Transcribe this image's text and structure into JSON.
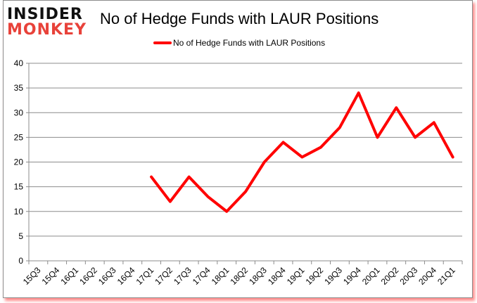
{
  "logo": {
    "line1": "INSIDER",
    "line2": "MONKEY"
  },
  "chart_data": {
    "type": "line",
    "title": "No of Hedge Funds with LAUR Positions",
    "xlabel": "",
    "ylabel": "",
    "ylim": [
      0,
      40
    ],
    "yticks": [
      0,
      5,
      10,
      15,
      20,
      25,
      30,
      35,
      40
    ],
    "grid": true,
    "legend_position": "top",
    "categories": [
      "15Q3",
      "15Q4",
      "16Q1",
      "16Q2",
      "16Q3",
      "16Q4",
      "17Q1",
      "17Q2",
      "17Q3",
      "17Q4",
      "18Q1",
      "18Q2",
      "18Q3",
      "18Q4",
      "19Q1",
      "19Q2",
      "19Q3",
      "19Q4",
      "20Q1",
      "20Q2",
      "20Q3",
      "20Q4",
      "21Q1"
    ],
    "series": [
      {
        "name": "No of Hedge Funds with LAUR Positions",
        "color": "#ff0000",
        "values": [
          null,
          null,
          null,
          null,
          null,
          null,
          17,
          12,
          17,
          13,
          10,
          14,
          20,
          24,
          21,
          23,
          27,
          34,
          25,
          31,
          25,
          28,
          21
        ]
      }
    ]
  }
}
